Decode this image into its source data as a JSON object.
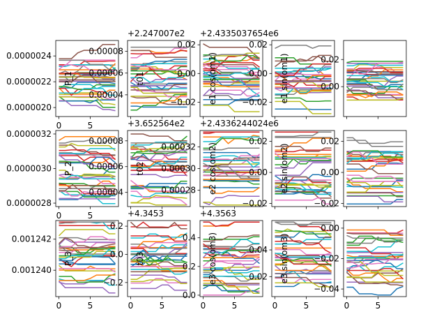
{
  "figure": {
    "rows": 3,
    "cols": 5,
    "palette": [
      "#1f77b4",
      "#ff7f0e",
      "#2ca02c",
      "#d62728",
      "#9467bd",
      "#8c564b",
      "#e377c2",
      "#7f7f7f",
      "#bcbd22",
      "#17becf"
    ]
  },
  "chart_data": [
    {
      "type": "line",
      "row": 0,
      "col": 0,
      "xlim": [
        -0.5,
        9.5
      ],
      "ylim": [
        1.93e-06,
        2.52e-06
      ],
      "xticks": [
        0,
        5
      ],
      "yticks": [
        2e-06,
        2.2e-06,
        2.4e-06
      ],
      "ytick_labels": [
        "0.0000020",
        "0.0000022",
        "0.0000024"
      ],
      "ylabel": "P_1",
      "offset": "",
      "ny": [
        0.36,
        0.45,
        0.52,
        0.6
      ],
      "yspread": 0.35,
      "seed": 1
    },
    {
      "type": "line",
      "row": 0,
      "col": 1,
      "xlim": [
        -0.5,
        9.5
      ],
      "ylim": [
        2e-05,
        9e-05
      ],
      "xticks": [],
      "yticks": [
        4e-05,
        6e-05,
        8e-05
      ],
      "ytick_labels": [
        "0.00004",
        "0.00006",
        "0.00008"
      ],
      "ylabel": "t01",
      "offset": "+2.247007e2",
      "ny": [
        0.25,
        0.4,
        0.55,
        0.72
      ],
      "yspread": 0.45,
      "seed": 2
    },
    {
      "type": "line",
      "row": 0,
      "col": 2,
      "xlim": [
        -0.5,
        9.5
      ],
      "ylim": [
        -0.03,
        0.023
      ],
      "xticks": [],
      "yticks": [
        -0.02,
        0.0,
        0.02
      ],
      "ytick_labels": [
        "−0.02",
        "0.00",
        "0.02"
      ],
      "ylabel": "e1 cos(om1)",
      "offset": "+2.4335037654e6",
      "ny": [
        0.35,
        0.5,
        0.6,
        0.75
      ],
      "yspread": 0.45,
      "seed": 3
    },
    {
      "type": "line",
      "row": 0,
      "col": 3,
      "xlim": [
        -0.5,
        9.5
      ],
      "ylim": [
        -0.03,
        0.023
      ],
      "xticks": [],
      "yticks": [
        -0.02,
        0.0,
        0.02
      ],
      "ytick_labels": [
        "−0.02",
        "0.00",
        "0.02"
      ],
      "ylabel": "e1 sin(om1)",
      "offset": "",
      "ny": [
        0.3,
        0.45,
        0.58,
        0.7
      ],
      "yspread": 0.45,
      "seed": 4
    },
    {
      "type": "line",
      "row": 0,
      "col": 4,
      "xlim": [
        -0.5,
        9.5
      ],
      "ylim": [
        -0.022,
        0.034
      ],
      "xticks": [],
      "yticks": [
        0.0,
        0.02
      ],
      "ytick_labels": [
        "0.00",
        "0.02"
      ],
      "ylabel": "",
      "offset": "",
      "ny": [
        0.3,
        0.42,
        0.55,
        0.65
      ],
      "yspread": 0.35,
      "seed": 5
    },
    {
      "type": "line",
      "row": 1,
      "col": 0,
      "xlim": [
        -0.5,
        9.5
      ],
      "ylim": [
        2.78e-06,
        3.22e-06
      ],
      "xticks": [
        0,
        5
      ],
      "yticks": [
        2.8e-06,
        3e-06,
        3.2e-06
      ],
      "ytick_labels": [
        "0.0000028",
        "0.0000030",
        "0.0000032"
      ],
      "ylabel": "P_2",
      "offset": "",
      "ny": [
        0.25,
        0.4,
        0.55,
        0.8
      ],
      "yspread": 0.5,
      "seed": 6
    },
    {
      "type": "line",
      "row": 1,
      "col": 1,
      "xlim": [
        -0.5,
        9.5
      ],
      "ylim": [
        2.9e-05,
        8.8e-05
      ],
      "xticks": [],
      "yticks": [
        4e-05,
        6e-05,
        8e-05
      ],
      "ytick_labels": [
        "0.00004",
        "0.00006",
        "0.00008"
      ],
      "ylabel": "t02",
      "offset": "+3.652564e2",
      "ny": [
        0.25,
        0.4,
        0.55,
        0.75
      ],
      "yspread": 0.5,
      "seed": 7
    },
    {
      "type": "line",
      "row": 1,
      "col": 2,
      "xlim": [
        -0.5,
        9.5
      ],
      "ylim": [
        0.000265,
        0.000335
      ],
      "xticks": [],
      "yticks": [
        0.00028,
        0.0003,
        0.00032
      ],
      "ytick_labels": [
        "0.00028",
        "0.00030",
        "0.00032"
      ],
      "ylabel": "e2 cos(om2)",
      "offset": "+2.4336244024e6",
      "ny": [
        0.3,
        0.45,
        0.58,
        0.75
      ],
      "yspread": 0.5,
      "seed": 8
    },
    {
      "type": "line",
      "row": 1,
      "col": 3,
      "xlim": [
        -0.5,
        9.5
      ],
      "ylim": [
        -0.022,
        0.027
      ],
      "xticks": [],
      "yticks": [
        -0.02,
        0.0,
        0.02
      ],
      "ytick_labels": [
        "−0.02",
        "0.00",
        "0.02"
      ],
      "ylabel": "e2 sin(om2)",
      "offset": "",
      "ny": [
        0.3,
        0.45,
        0.58,
        0.8
      ],
      "yspread": 0.5,
      "seed": 9
    },
    {
      "type": "line",
      "row": 1,
      "col": 4,
      "xlim": [
        -0.5,
        9.5
      ],
      "ylim": [
        -0.022,
        0.027
      ],
      "xticks": [],
      "yticks": [
        -0.02,
        0.0,
        0.02
      ],
      "ytick_labels": [
        "−0.02",
        "0.00",
        "0.02"
      ],
      "ylabel": "",
      "offset": "",
      "ny": [
        0.25,
        0.42,
        0.55,
        0.8
      ],
      "yspread": 0.5,
      "seed": 10
    },
    {
      "type": "line",
      "row": 2,
      "col": 0,
      "xlim": [
        -0.5,
        9.5
      ],
      "ylim": [
        0.0012383,
        0.0012432
      ],
      "xticks": [
        0,
        5
      ],
      "yticks": [
        0.00124,
        0.001242
      ],
      "ytick_labels": [
        "0.001240",
        "0.001242"
      ],
      "ylabel": "P_3",
      "offset": "",
      "ny": [
        0.3,
        0.45,
        0.58,
        0.8
      ],
      "yspread": 0.5,
      "seed": 11
    },
    {
      "type": "line",
      "row": 2,
      "col": 1,
      "xlim": [
        -0.5,
        9.5
      ],
      "ylim": [
        -0.3,
        0.24
      ],
      "xticks": [
        0,
        5
      ],
      "yticks": [
        -0.2,
        0.0,
        0.2
      ],
      "ytick_labels": [
        "−0.2",
        "0.0",
        "0.2"
      ],
      "ylabel": "t03",
      "offset": "+4.3453",
      "ny": [
        0.3,
        0.45,
        0.58,
        0.8
      ],
      "yspread": 0.5,
      "seed": 12
    },
    {
      "type": "line",
      "row": 2,
      "col": 2,
      "xlim": [
        -0.5,
        9.5
      ],
      "ylim": [
        -0.01,
        0.52
      ],
      "xticks": [
        0,
        5
      ],
      "yticks": [
        0.0,
        0.2,
        0.4
      ],
      "ytick_labels": [
        "0.0",
        "0.2",
        "0.4"
      ],
      "ylabel": "e3 cos(om3)",
      "offset": "+4.3563",
      "ny": [
        0.25,
        0.45,
        0.6,
        0.85
      ],
      "yspread": 0.55,
      "seed": 13
    },
    {
      "type": "line",
      "row": 2,
      "col": 3,
      "xlim": [
        -0.5,
        9.5
      ],
      "ylim": [
        0.005,
        0.062
      ],
      "xticks": [
        0,
        5
      ],
      "yticks": [
        0.02,
        0.04
      ],
      "ytick_labels": [
        "0.02",
        "0.04"
      ],
      "ylabel": "e3 sin(om3)",
      "offset": "",
      "ny": [
        0.3,
        0.48,
        0.62,
        0.8
      ],
      "yspread": 0.5,
      "seed": 14
    },
    {
      "type": "line",
      "row": 2,
      "col": 4,
      "xlim": [
        -0.5,
        9.5
      ],
      "ylim": [
        -0.045,
        0.005
      ],
      "xticks": [
        0,
        5
      ],
      "yticks": [
        -0.04,
        -0.02,
        0.0
      ],
      "ytick_labels": [
        "−0.04",
        "−0.02",
        "0.00"
      ],
      "ylabel": "",
      "offset": "",
      "ny": [
        0.25,
        0.42,
        0.55,
        0.75
      ],
      "yspread": 0.5,
      "seed": 15
    }
  ]
}
